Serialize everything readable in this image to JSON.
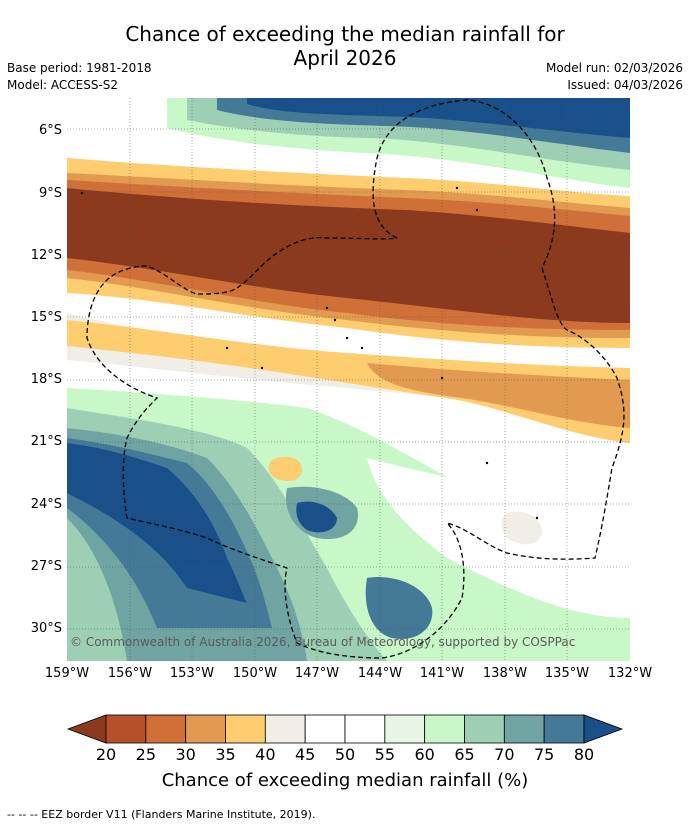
{
  "title_line1": "Chance of exceeding the median rainfall for",
  "title_line2": "April 2026",
  "meta": {
    "base_period": "Base period: 1981-2018",
    "model": "Model: ACCESS-S2",
    "model_run": "Model run: 02/03/2026",
    "issued": "Issued: 04/03/2026"
  },
  "map": {
    "copyright": "© Commonwealth of Australia 2026, Bureau of Meteorology, supported by COSPPac",
    "lat_labels": [
      "6°S",
      "9°S",
      "12°S",
      "15°S",
      "18°S",
      "21°S",
      "24°S",
      "27°S",
      "30°S"
    ],
    "lon_labels": [
      "159°W",
      "156°W",
      "153°W",
      "150°W",
      "147°W",
      "144°W",
      "141°W",
      "138°W",
      "135°W",
      "132°W"
    ],
    "extent": {
      "lon_min": -159,
      "lon_max": -132,
      "lat_min": -31.5,
      "lat_max": -4.5
    }
  },
  "colorbar": {
    "labels": [
      "20",
      "25",
      "30",
      "35",
      "40",
      "45",
      "50",
      "55",
      "60",
      "65",
      "70",
      "75",
      "80"
    ],
    "colors": [
      "#8b3a1e",
      "#b5502a",
      "#cf7038",
      "#e29a50",
      "#fdcd70",
      "#f0eee6",
      "#ffffff",
      "#ffffff",
      "#e6f5e6",
      "#c8f7c8",
      "#9dcfb5",
      "#6fa4a3",
      "#447a98",
      "#19508a"
    ],
    "title": "Chance of exceeding median rainfall (%)"
  },
  "footnote": "--  --  -- EEZ border V11 (Flanders Marine Institute, 2019)."
}
